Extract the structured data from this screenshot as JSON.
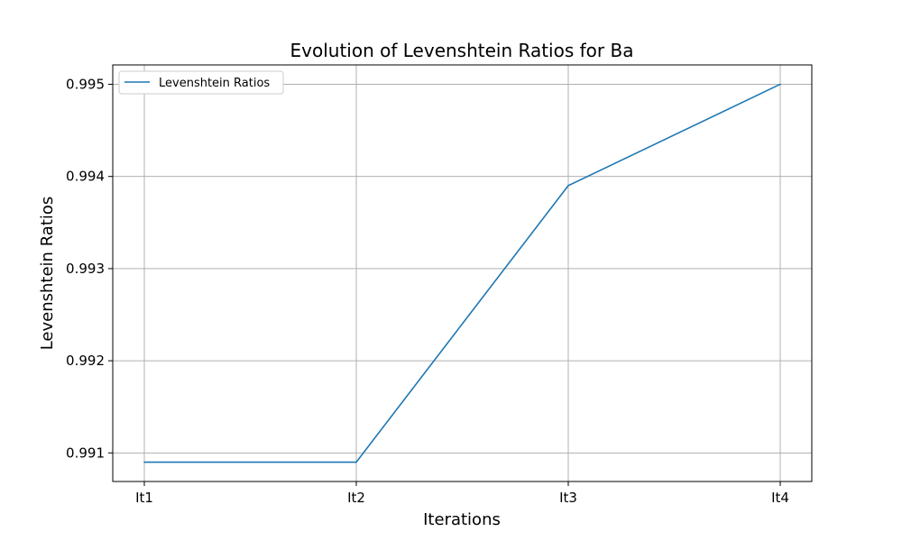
{
  "chart_data": {
    "type": "line",
    "title": "Evolution of Levenshtein Ratios for Ba",
    "xlabel": "Iterations",
    "ylabel": "Levenshtein Ratios",
    "categories": [
      "It1",
      "It2",
      "It3",
      "It4"
    ],
    "series": [
      {
        "name": "Levenshtein Ratios",
        "values": [
          0.9909,
          0.9909,
          0.9939,
          0.995
        ],
        "color": "#1f77b4"
      }
    ],
    "yticks": [
      "0.991",
      "0.992",
      "0.993",
      "0.994",
      "0.995"
    ],
    "ytick_values": [
      0.991,
      0.992,
      0.993,
      0.994,
      0.995
    ],
    "ylim": [
      0.99069,
      0.99521
    ],
    "grid": true,
    "legend_position": "upper-left"
  }
}
